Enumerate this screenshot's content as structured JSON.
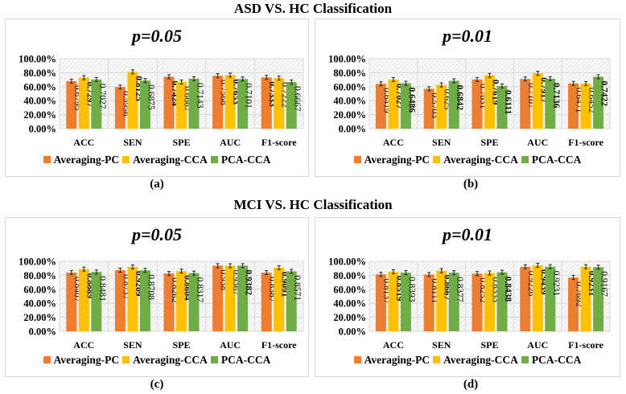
{
  "figure": {
    "sections": [
      {
        "title": "ASD VS. HC Classification"
      },
      {
        "title": "MCI VS. HC Classification"
      }
    ],
    "legend": [
      {
        "name": "Averaging-PC",
        "color": "#ED7D31"
      },
      {
        "name": "Averaging-CCA",
        "color": "#FFC000"
      },
      {
        "name": "PCA-CCA",
        "color": "#70AD47"
      }
    ],
    "plot_background": "#f2f2f2",
    "gridline_color": "#d9d9d9"
  },
  "chart_data": [
    {
      "type": "bar",
      "panel": "(a)",
      "section": "ASD VS. HC Classification",
      "title": "p=0.05",
      "categories": [
        "ACC",
        "SEN",
        "SPE",
        "AUC",
        "F1-score"
      ],
      "yticks": [
        "0.00%",
        "20.00%",
        "40.00%",
        "60.00%",
        "80.00%",
        "100.00%"
      ],
      "ylim": [
        0,
        1
      ],
      "grid": true,
      "legend_position": "bottom",
      "error_bars": true,
      "series": [
        {
          "name": "Averaging-PC",
          "values": [
            0.6795,
            0.5956,
            0.7424,
            0.7568,
            0.7333
          ],
          "bold": [
            false,
            false,
            true,
            false,
            true
          ]
        },
        {
          "name": "Averaging-CCA",
          "values": [
            0.7297,
            0.8125,
            0.6667,
            0.7653,
            0.7222
          ],
          "bold": [
            true,
            true,
            false,
            true,
            false
          ]
        },
        {
          "name": "PCA-CCA",
          "values": [
            0.7027,
            0.6875,
            0.7143,
            0.7101,
            0.6667
          ],
          "bold": [
            false,
            false,
            false,
            false,
            false
          ]
        }
      ]
    },
    {
      "type": "bar",
      "panel": "(b)",
      "section": "ASD VS. HC Classification",
      "title": "p=0.01",
      "categories": [
        "ACC",
        "SEN",
        "SPE",
        "AUC",
        "F1-score"
      ],
      "yticks": [
        "0.00%",
        "20.00%",
        "40.00%",
        "60.00%",
        "80.00%",
        "100.00%"
      ],
      "ylim": [
        0,
        1
      ],
      "grid": true,
      "legend_position": "bottom",
      "error_bars": true,
      "series": [
        {
          "name": "Averaging-PC",
          "values": [
            0.6419,
            0.5703,
            0.7031,
            0.7107,
            0.6471
          ],
          "bold": [
            false,
            false,
            false,
            false,
            false
          ]
        },
        {
          "name": "Averaging-CCA",
          "values": [
            0.7027,
            0.625,
            0.7619,
            0.7917,
            0.6452
          ],
          "bold": [
            true,
            false,
            true,
            true,
            false
          ]
        },
        {
          "name": "PCA-CCA",
          "values": [
            0.6486,
            0.6842,
            0.6111,
            0.7136,
            0.7422
          ],
          "bold": [
            true,
            true,
            true,
            true,
            true
          ]
        }
      ]
    },
    {
      "type": "bar",
      "panel": "(c)",
      "section": "MCI VS. HC Classification",
      "title": "p=0.05",
      "categories": [
        "ACC",
        "SEN",
        "SPE",
        "AUC",
        "F1-score"
      ],
      "yticks": [
        "0.00%",
        "20.00%",
        "40.00%",
        "60.00%",
        "80.00%",
        "100.00%"
      ],
      "ylim": [
        0,
        1
      ],
      "grid": true,
      "legend_position": "bottom",
      "error_bars": true,
      "series": [
        {
          "name": "Averaging-PC",
          "values": [
            0.8407,
            0.8737,
            0.8262,
            0.938,
            0.8387
          ],
          "bold": [
            false,
            false,
            false,
            false,
            false
          ]
        },
        {
          "name": "Averaging-CCA",
          "values": [
            0.8889,
            0.9209,
            0.8604,
            0.9367,
            0.9091
          ],
          "bold": [
            true,
            true,
            true,
            false,
            true
          ]
        },
        {
          "name": "PCA-CCA",
          "values": [
            0.8481,
            0.8708,
            0.8317,
            0.9382,
            0.8571
          ],
          "bold": [
            false,
            false,
            false,
            true,
            false
          ]
        }
      ]
    },
    {
      "type": "bar",
      "panel": "(d)",
      "section": "MCI VS. HC Classification",
      "title": "p=0.01",
      "categories": [
        "ACC",
        "SEN",
        "SPE",
        "AUC",
        "F1-score"
      ],
      "yticks": [
        "0.00%",
        "20.00%",
        "40.00%",
        "60.00%",
        "80.00%",
        "100.00%"
      ],
      "ylim": [
        0,
        1
      ],
      "grid": true,
      "legend_position": "bottom",
      "error_bars": true,
      "series": [
        {
          "name": "Averaging-PC",
          "values": [
            0.8137,
            0.8111,
            0.8252,
            0.9226,
            0.7692
          ],
          "bold": [
            false,
            false,
            false,
            false,
            false
          ]
        },
        {
          "name": "Averaging-CCA",
          "values": [
            0.8519,
            0.8667,
            0.8333,
            0.9439,
            0.9231
          ],
          "bold": [
            true,
            true,
            false,
            true,
            true
          ]
        },
        {
          "name": "PCA-CCA",
          "values": [
            0.8393,
            0.8377,
            0.8438,
            0.9231,
            0.9167
          ],
          "bold": [
            false,
            false,
            true,
            false,
            false
          ]
        }
      ]
    }
  ]
}
